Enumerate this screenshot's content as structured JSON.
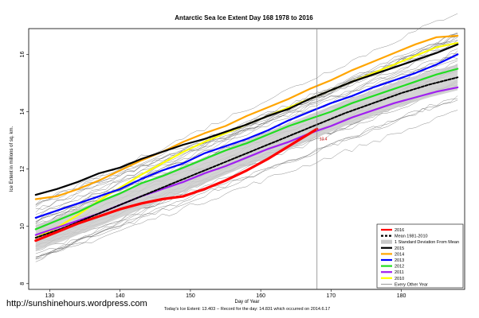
{
  "watermark": "http://sunshinehours.wordpress.com",
  "chart_data": {
    "type": "line",
    "title": "Antarctic Sea Ice Extent Day 168 1978 to 2016",
    "xlabel": "Day of Year",
    "ylabel": "Ice Extent in millions of sq. km.",
    "caption": "Today's Ice Extent: 13.403  --  Record for the day: 14.831 which occurred on 2014.6.17",
    "annotation": "13.4",
    "xlim": [
      127,
      189
    ],
    "ylim": [
      7.8,
      16.9
    ],
    "x_ticks": [
      130,
      140,
      150,
      160,
      170,
      180
    ],
    "y_ticks": [
      8,
      10,
      12,
      14,
      16
    ],
    "current_day": 168,
    "legend_position": "bottom-right",
    "legend": [
      {
        "label": "2016",
        "color": "#ff0000",
        "style": "solid"
      },
      {
        "label": "Mean 1981-2010",
        "color": "#000000",
        "style": "dashed"
      },
      {
        "label": "1 Standard Deviation From Mean",
        "color": "#c8c8c8",
        "style": "band"
      },
      {
        "label": "2015",
        "color": "#000000",
        "style": "solid"
      },
      {
        "label": "2014",
        "color": "#ffa500",
        "style": "solid"
      },
      {
        "label": "2013",
        "color": "#0000ff",
        "style": "solid"
      },
      {
        "label": "2012",
        "color": "#22dd22",
        "style": "solid"
      },
      {
        "label": "2011",
        "color": "#a020f0",
        "style": "solid"
      },
      {
        "label": "2010",
        "color": "#ffff00",
        "style": "solid"
      },
      {
        "label": "Every Other Year",
        "color": "#555555",
        "style": "thin"
      }
    ],
    "series": [
      {
        "name": "2016",
        "color": "#ff0000",
        "x": [
          128,
          131,
          134,
          137,
          140,
          143,
          146,
          149,
          152,
          155,
          158,
          161,
          164,
          166,
          168
        ],
        "y": [
          9.5,
          9.8,
          10.1,
          10.35,
          10.6,
          10.8,
          10.95,
          11.05,
          11.3,
          11.6,
          11.95,
          12.35,
          12.8,
          13.1,
          13.4
        ]
      },
      {
        "name": "Mean 1981-2010",
        "color": "#000000",
        "x": [
          128,
          132,
          136,
          140,
          144,
          148,
          152,
          156,
          160,
          164,
          168,
          172,
          176,
          180,
          184,
          188
        ],
        "y": [
          9.6,
          9.95,
          10.35,
          10.75,
          11.15,
          11.55,
          11.95,
          12.35,
          12.75,
          13.15,
          13.55,
          13.95,
          14.3,
          14.65,
          14.95,
          15.2
        ]
      },
      {
        "name": "2015",
        "color": "#000000",
        "x": [
          128,
          131,
          134,
          137,
          140,
          143,
          146,
          149,
          152,
          155,
          158,
          161,
          164,
          167,
          170,
          173,
          176,
          179,
          182,
          185,
          188
        ],
        "y": [
          11.1,
          11.3,
          11.55,
          11.85,
          12.05,
          12.35,
          12.6,
          12.85,
          13.05,
          13.3,
          13.55,
          13.85,
          14.1,
          14.45,
          14.75,
          15.05,
          15.3,
          15.55,
          15.8,
          16.05,
          16.35
        ]
      },
      {
        "name": "2014",
        "color": "#ffa500",
        "x": [
          128,
          131,
          134,
          137,
          140,
          143,
          146,
          149,
          152,
          155,
          158,
          161,
          164,
          167,
          170,
          173,
          176,
          179,
          182,
          185,
          188
        ],
        "y": [
          10.95,
          11.05,
          11.3,
          11.6,
          11.95,
          12.3,
          12.6,
          12.95,
          13.25,
          13.5,
          13.85,
          14.15,
          14.45,
          14.8,
          15.1,
          15.45,
          15.75,
          16.05,
          16.35,
          16.6,
          16.65
        ]
      },
      {
        "name": "2013",
        "color": "#0000ff",
        "x": [
          128,
          131,
          134,
          137,
          140,
          143,
          146,
          149,
          152,
          155,
          158,
          161,
          164,
          167,
          170,
          173,
          176,
          179,
          182,
          185,
          188
        ],
        "y": [
          10.3,
          10.55,
          10.8,
          11.05,
          11.3,
          11.65,
          11.95,
          12.2,
          12.55,
          12.8,
          13.05,
          13.35,
          13.7,
          14.0,
          14.3,
          14.55,
          14.85,
          15.1,
          15.35,
          15.65,
          16.0
        ]
      },
      {
        "name": "2012",
        "color": "#22dd22",
        "x": [
          128,
          131,
          134,
          137,
          140,
          143,
          146,
          149,
          152,
          155,
          158,
          161,
          164,
          167,
          170,
          173,
          176,
          179,
          182,
          185,
          188
        ],
        "y": [
          9.9,
          10.2,
          10.5,
          10.85,
          11.15,
          11.5,
          11.75,
          12.05,
          12.35,
          12.65,
          12.9,
          13.2,
          13.5,
          13.75,
          14.0,
          14.3,
          14.55,
          14.8,
          15.05,
          15.3,
          15.5
        ]
      },
      {
        "name": "2011",
        "color": "#a020f0",
        "x": [
          128,
          131,
          134,
          137,
          140,
          143,
          146,
          149,
          152,
          155,
          158,
          161,
          164,
          167,
          170,
          173,
          176,
          179,
          182,
          185,
          188
        ],
        "y": [
          9.7,
          9.95,
          10.2,
          10.45,
          10.75,
          11.05,
          11.3,
          11.55,
          11.85,
          12.1,
          12.4,
          12.7,
          12.95,
          13.25,
          13.5,
          13.8,
          14.05,
          14.3,
          14.5,
          14.7,
          14.85
        ]
      },
      {
        "name": "2010",
        "color": "#ffff00",
        "x": [
          128,
          131,
          134,
          137,
          140,
          143,
          146,
          149,
          152,
          155,
          158,
          161,
          164,
          167,
          170,
          173,
          176,
          179,
          182,
          185,
          188
        ],
        "y": [
          9.6,
          9.95,
          10.4,
          10.9,
          11.35,
          11.8,
          12.2,
          12.6,
          12.95,
          13.25,
          13.55,
          13.85,
          14.15,
          14.45,
          14.75,
          15.05,
          15.35,
          15.65,
          15.95,
          16.25,
          16.4
        ]
      }
    ]
  }
}
